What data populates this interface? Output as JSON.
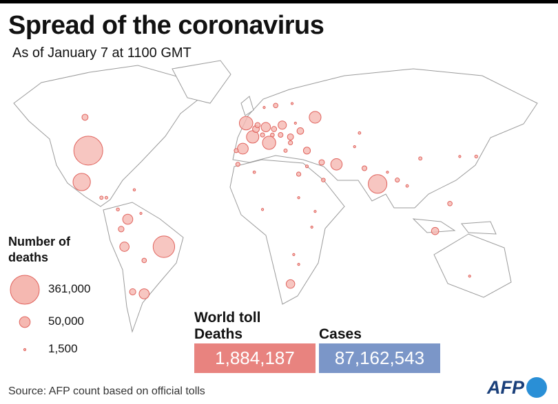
{
  "chart_data": {
    "type": "bubble-map",
    "title": "Spread of the coronavirus",
    "subtitle": "As of January 7 at 1100 GMT",
    "legend_title": "Number of deaths",
    "legend_sizes": [
      {
        "value": 361000,
        "label": "361,000"
      },
      {
        "value": 50000,
        "label": "50,000"
      },
      {
        "value": 1500,
        "label": "1,500"
      }
    ],
    "bubble_color": "#f5b8b1",
    "bubble_stroke": "#e0625c",
    "bubbles": [
      {
        "lon": -98,
        "lat": 39,
        "deaths": 361000
      },
      {
        "lon": -52,
        "lat": -10,
        "deaths": 200000
      },
      {
        "lon": 78,
        "lat": 22,
        "deaths": 150000
      },
      {
        "lon": -102,
        "lat": 23,
        "deaths": 130000
      },
      {
        "lon": -2,
        "lat": 53,
        "deaths": 78000
      },
      {
        "lon": 12,
        "lat": 43,
        "deaths": 76000
      },
      {
        "lon": 2,
        "lat": 46,
        "deaths": 66000
      },
      {
        "lon": 40,
        "lat": 56,
        "deaths": 60000
      },
      {
        "lon": 53,
        "lat": 32,
        "deaths": 56000
      },
      {
        "lon": -4,
        "lat": 40,
        "deaths": 51000
      },
      {
        "lon": -64,
        "lat": -34,
        "deaths": 44000
      },
      {
        "lon": -74,
        "lat": 4,
        "deaths": 44000
      },
      {
        "lon": 10,
        "lat": 51,
        "deaths": 38000
      },
      {
        "lon": -76,
        "lat": -10,
        "deaths": 38000
      },
      {
        "lon": 25,
        "lat": -29,
        "deaths": 32000
      },
      {
        "lon": 20,
        "lat": 52,
        "deaths": 30000
      },
      {
        "lon": 113,
        "lat": -2,
        "deaths": 23000
      },
      {
        "lon": 35,
        "lat": 39,
        "deaths": 21000
      },
      {
        "lon": 31,
        "lat": 49,
        "deaths": 19000
      },
      {
        "lon": 4,
        "lat": 50,
        "deaths": 20000
      },
      {
        "lon": -71,
        "lat": -33,
        "deaths": 17000
      },
      {
        "lon": -100,
        "lat": 56,
        "deaths": 16000
      },
      {
        "lon": 25,
        "lat": 46,
        "deaths": 16000
      },
      {
        "lon": -78,
        "lat": -1,
        "deaths": 14000
      },
      {
        "lon": 5,
        "lat": 52,
        "deaths": 12000
      },
      {
        "lon": 44,
        "lat": 33,
        "deaths": 13000
      },
      {
        "lon": 70,
        "lat": 30,
        "deaths": 10000
      },
      {
        "lon": 122,
        "lat": 12,
        "deaths": 9000
      },
      {
        "lon": 30,
        "lat": 27,
        "deaths": 8000
      },
      {
        "lon": -64,
        "lat": -17,
        "deaths": 9000
      },
      {
        "lon": 15,
        "lat": 50,
        "deaths": 12000
      },
      {
        "lon": 19,
        "lat": 47,
        "deaths": 10000
      },
      {
        "lon": 16,
        "lat": 62,
        "deaths": 9000
      },
      {
        "lon": 90,
        "lat": 24,
        "deaths": 7600
      },
      {
        "lon": 138,
        "lat": 36,
        "deaths": 3700
      },
      {
        "lon": 104,
        "lat": 35,
        "deaths": 4800
      },
      {
        "lon": -7,
        "lat": 32,
        "deaths": 7500
      },
      {
        "lon": 45,
        "lat": 24,
        "deaths": 6200
      },
      {
        "lon": 134,
        "lat": -25,
        "deaths": 900
      },
      {
        "lon": 38,
        "lat": 0,
        "deaths": 1700
      },
      {
        "lon": 40,
        "lat": 8,
        "deaths": 1900
      },
      {
        "lon": 8,
        "lat": 9,
        "deaths": 1300
      },
      {
        "lon": 3,
        "lat": 28,
        "deaths": 2800
      },
      {
        "lon": -90,
        "lat": 15,
        "deaths": 4800
      },
      {
        "lon": -87,
        "lat": 15,
        "deaths": 3100
      },
      {
        "lon": -80,
        "lat": 9,
        "deaths": 4000
      },
      {
        "lon": -66,
        "lat": 7,
        "deaths": 1000
      },
      {
        "lon": -70,
        "lat": 19,
        "deaths": 2400
      },
      {
        "lon": 67,
        "lat": 48,
        "deaths": 2900
      },
      {
        "lon": 64,
        "lat": 41,
        "deaths": 600
      },
      {
        "lon": 96,
        "lat": 21,
        "deaths": 3000
      },
      {
        "lon": 84,
        "lat": 28,
        "deaths": 1900
      },
      {
        "lon": 128,
        "lat": 36,
        "deaths": 1000
      },
      {
        "lon": 30,
        "lat": -19,
        "deaths": 500
      },
      {
        "lon": 27,
        "lat": -14,
        "deaths": 400
      },
      {
        "lon": 30,
        "lat": 15,
        "deaths": 1500
      },
      {
        "lon": 35,
        "lat": 31,
        "deaths": 3500
      },
      {
        "lon": -8,
        "lat": 39,
        "deaths": 7500
      },
      {
        "lon": 8,
        "lat": 47,
        "deaths": 7800
      },
      {
        "lon": 14,
        "lat": 47,
        "deaths": 6300
      },
      {
        "lon": 22,
        "lat": 39,
        "deaths": 5000
      },
      {
        "lon": 25,
        "lat": 43,
        "deaths": 7800
      },
      {
        "lon": 9,
        "lat": 61,
        "deaths": 440
      },
      {
        "lon": 26,
        "lat": 63,
        "deaths": 560
      },
      {
        "lon": 28,
        "lat": 53,
        "deaths": 1400
      }
    ],
    "world_toll_title": "World toll",
    "deaths_label": "Deaths",
    "deaths_total": {
      "value": 1884187,
      "label": "1,884,187"
    },
    "deaths_color": "#e8837f",
    "cases_label": "Cases",
    "cases_total": {
      "value": 87162543,
      "label": "87,162,543"
    },
    "cases_color": "#7b96c8",
    "source": "Source: AFP count based on official tolls",
    "logo": "AFP"
  }
}
